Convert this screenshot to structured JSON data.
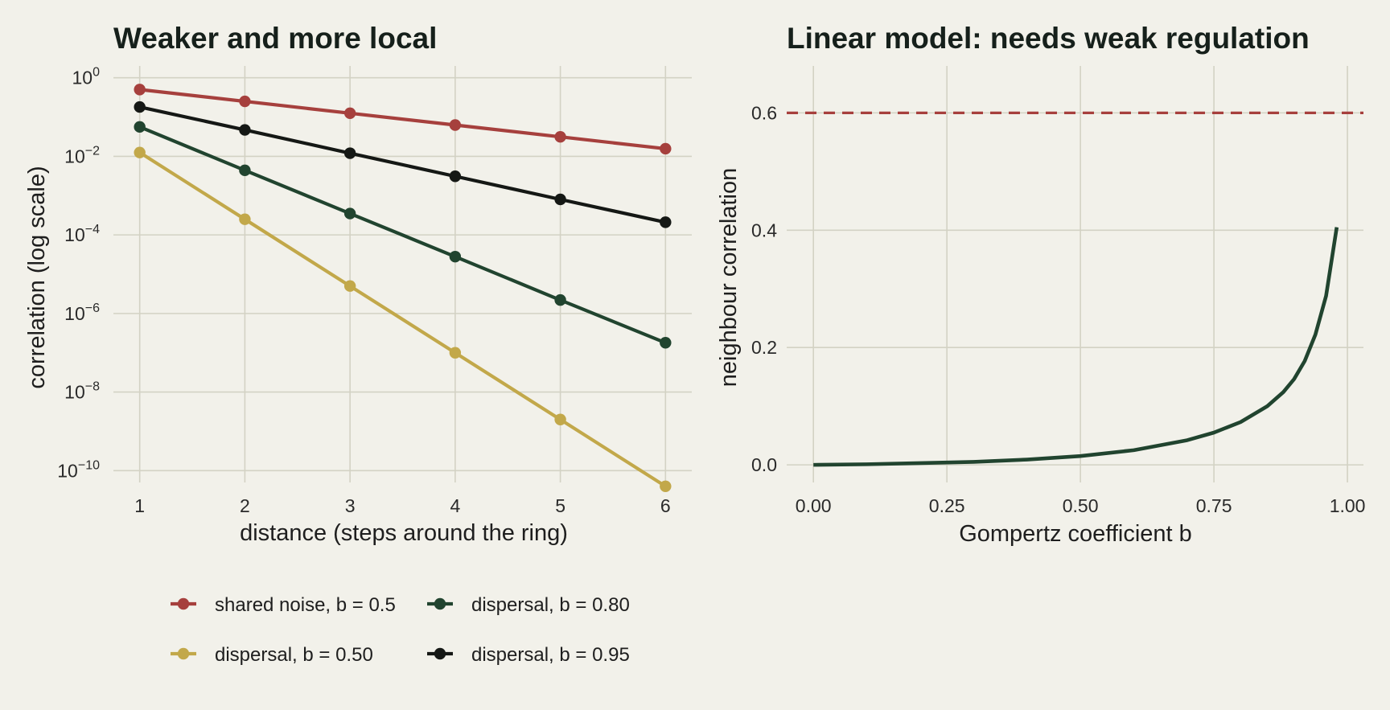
{
  "colors": {
    "background": "#f2f1ea",
    "grid": "#d3d2c4",
    "shared_noise": "#a6403d",
    "dispersal_050": "#c2a84a",
    "dispersal_080": "#21442f",
    "dispersal_095": "#151815",
    "curve": "#21442f",
    "reference_line": "#a6403d"
  },
  "chart_data": [
    {
      "type": "line",
      "title": "Weaker and more local",
      "xlabel": "distance (steps around the ring)",
      "ylabel": "correlation (log scale)",
      "yscale": "log",
      "x": [
        1,
        2,
        3,
        4,
        5,
        6
      ],
      "xticks": [
        "1",
        "2",
        "3",
        "4",
        "5",
        "6"
      ],
      "yticks": [
        {
          "base": "10",
          "exp": "0"
        },
        {
          "base": "10",
          "exp": "−2"
        },
        {
          "base": "10",
          "exp": "−4"
        },
        {
          "base": "10",
          "exp": "−6"
        },
        {
          "base": "10",
          "exp": "−8"
        },
        {
          "base": "10",
          "exp": "−10"
        }
      ],
      "yticks_log10": [
        0,
        -2,
        -4,
        -6,
        -8,
        -10
      ],
      "ylim_log10": [
        -10.3,
        0.3
      ],
      "xlim": [
        0.75,
        6.25
      ],
      "grid": true,
      "legend_position": "bottom",
      "series": [
        {
          "name": "shared noise, b = 0.5",
          "color_key": "shared_noise",
          "values": [
            0.5,
            0.25,
            0.125,
            0.0625,
            0.03125,
            0.015625
          ]
        },
        {
          "name": "dispersal, b = 0.80",
          "color_key": "dispersal_080",
          "values": [
            0.056,
            0.0044,
            0.00035,
            2.8e-05,
            2.2e-06,
            1.8e-07
          ]
        },
        {
          "name": "dispersal, b = 0.50",
          "color_key": "dispersal_050",
          "values": [
            0.0125,
            0.00025,
            5e-06,
            1e-07,
            2e-09,
            4e-11
          ]
        },
        {
          "name": "dispersal, b = 0.95",
          "color_key": "dispersal_095",
          "values": [
            0.18,
            0.047,
            0.012,
            0.0031,
            0.0008,
            0.00021
          ]
        }
      ]
    },
    {
      "type": "line",
      "title": "Linear model: needs weak regulation",
      "xlabel": "Gompertz coefficient b",
      "ylabel": "neighbour correlation",
      "xticks": [
        "0.00",
        "0.25",
        "0.50",
        "0.75",
        "1.00"
      ],
      "xtick_values": [
        0,
        0.25,
        0.5,
        0.75,
        1.0
      ],
      "yticks": [
        "0.0",
        "0.2",
        "0.4",
        "0.6"
      ],
      "ytick_values": [
        0,
        0.2,
        0.4,
        0.6
      ],
      "xlim": [
        -0.05,
        1.03
      ],
      "ylim": [
        -0.03,
        0.68
      ],
      "grid": true,
      "reference_line": {
        "y": 0.6,
        "style": "dashed",
        "color_key": "reference_line"
      },
      "series": [
        {
          "color_key": "curve",
          "x": [
            0,
            0.1,
            0.2,
            0.3,
            0.4,
            0.5,
            0.6,
            0.7,
            0.75,
            0.8,
            0.85,
            0.88,
            0.9,
            0.92,
            0.94,
            0.96,
            0.98
          ],
          "y": [
            0,
            0.001,
            0.003,
            0.005,
            0.009,
            0.015,
            0.025,
            0.042,
            0.055,
            0.073,
            0.1,
            0.124,
            0.146,
            0.177,
            0.222,
            0.288,
            0.405
          ]
        }
      ]
    }
  ]
}
